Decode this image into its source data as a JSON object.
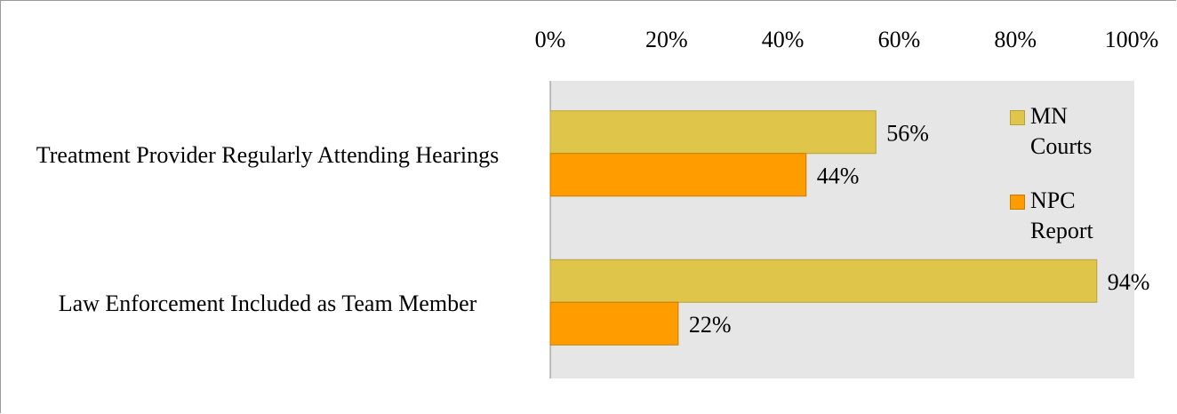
{
  "chart_data": {
    "type": "bar",
    "orientation": "horizontal",
    "categories": [
      "Treatment Provider Regularly Attending Hearings",
      "Law Enforcement Included as Team Member"
    ],
    "series": [
      {
        "name": "MN Courts",
        "color": "#dfc54a",
        "values": [
          56,
          94
        ],
        "value_labels": [
          "56%",
          "94%"
        ]
      },
      {
        "name": "NPC Report",
        "color": "#ff9d00",
        "values": [
          44,
          22
        ],
        "value_labels": [
          "44%",
          "22%"
        ]
      }
    ],
    "xlim": [
      0,
      100
    ],
    "xticks": [
      {
        "value": 0,
        "label": "0%"
      },
      {
        "value": 20,
        "label": "20%"
      },
      {
        "value": 40,
        "label": "40%"
      },
      {
        "value": 60,
        "label": "60%"
      },
      {
        "value": 80,
        "label": "80%"
      },
      {
        "value": 100,
        "label": "100%"
      }
    ],
    "legend": "upper right"
  }
}
